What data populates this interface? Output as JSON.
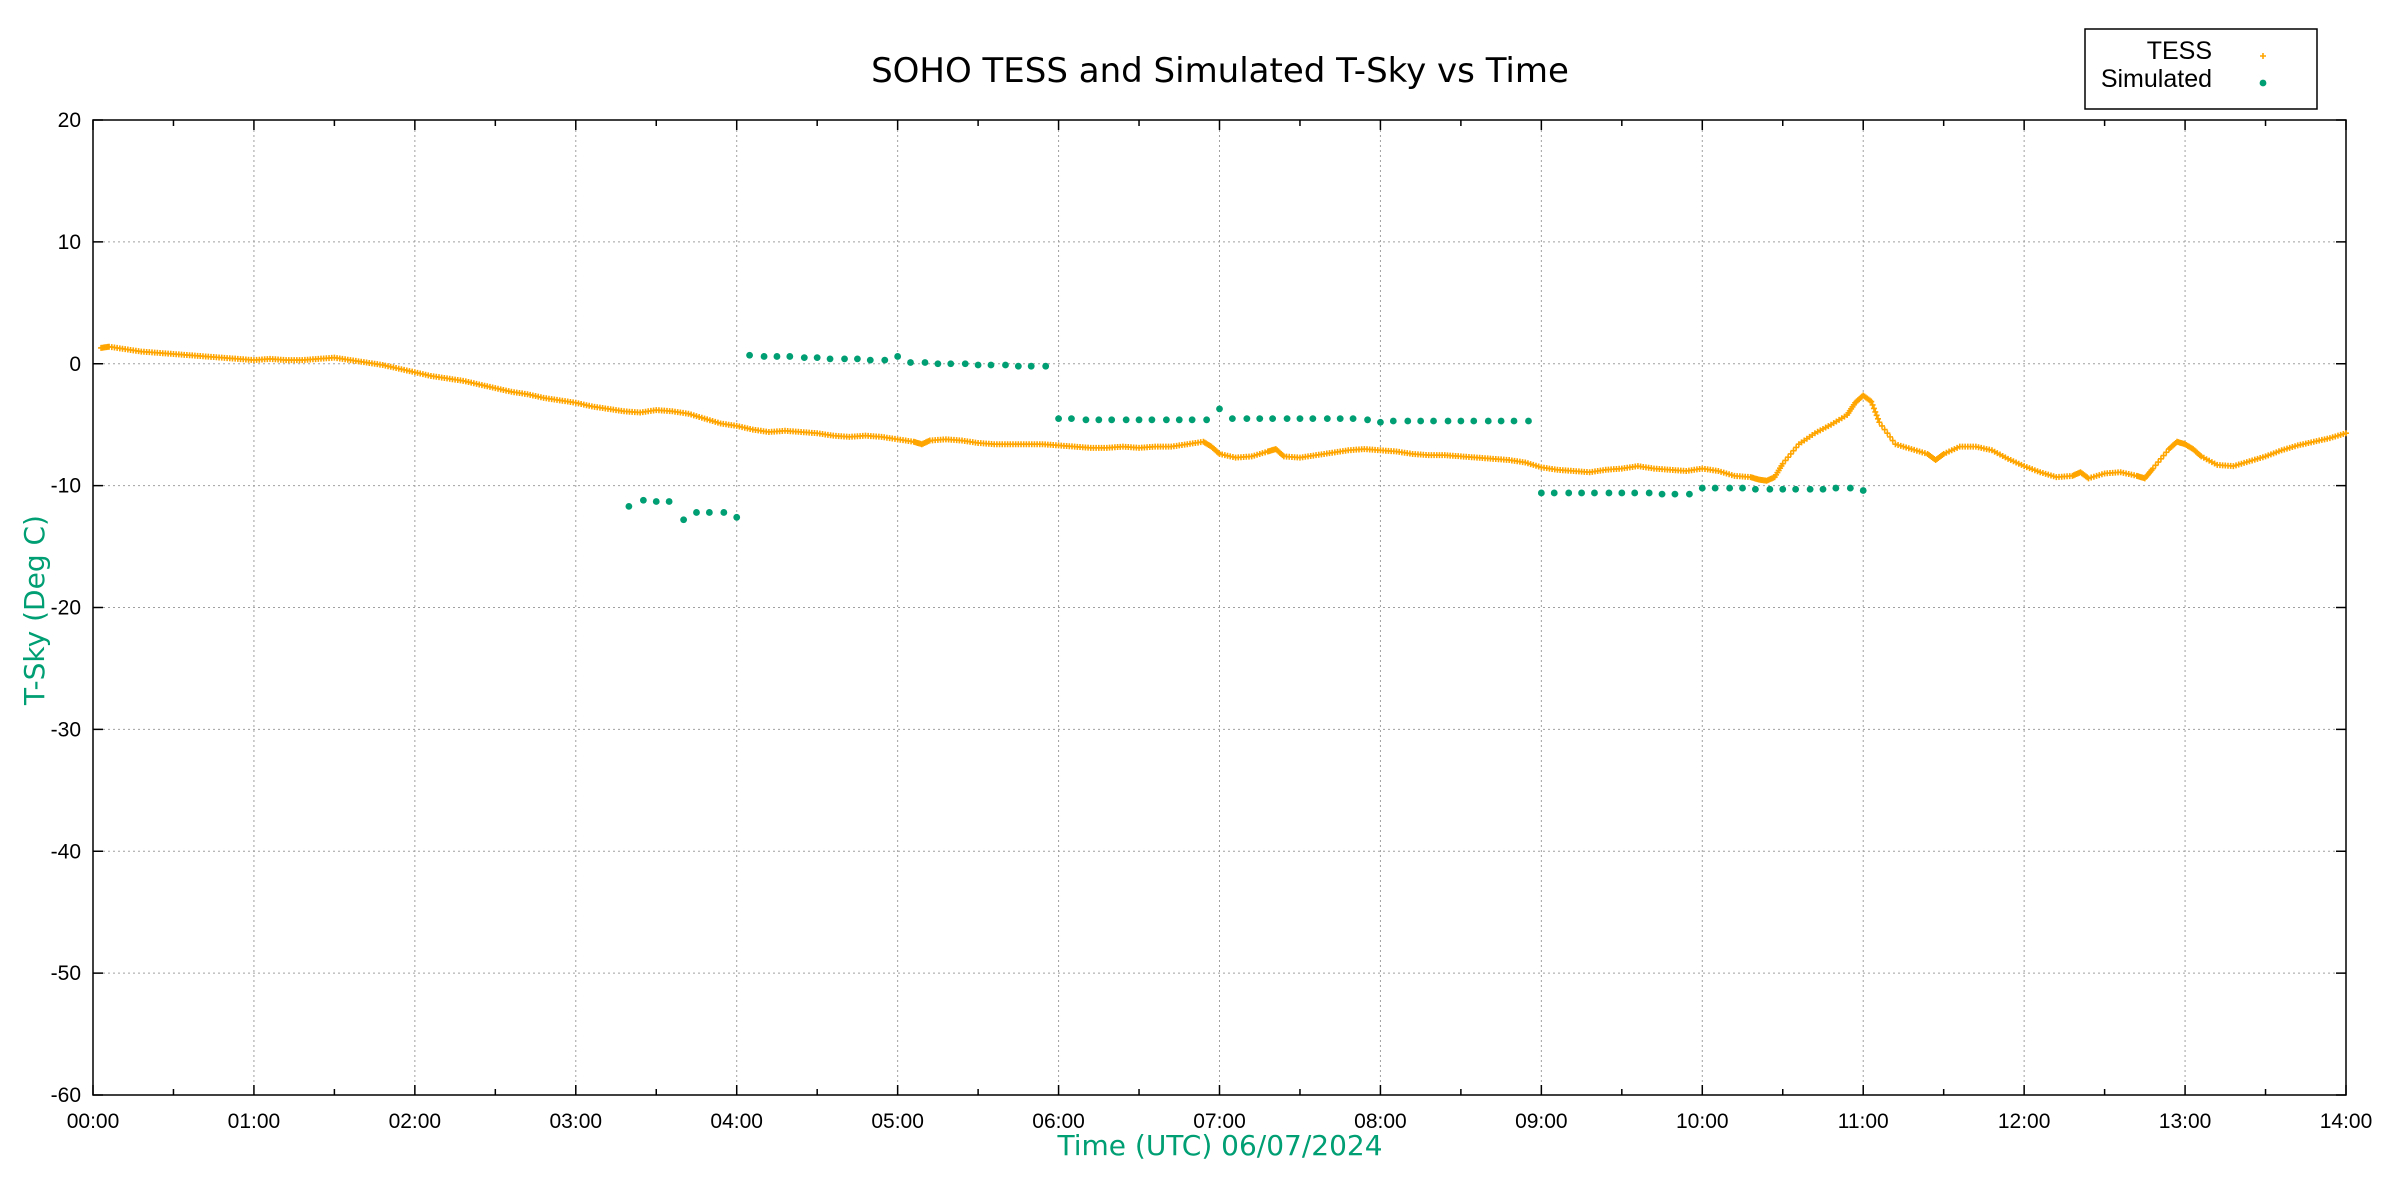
{
  "chart_data": {
    "type": "scatter",
    "title": "SOHO TESS and Simulated T-Sky vs Time",
    "xlabel": "Time (UTC)    06/07/2024",
    "ylabel": "T-Sky (Deg C)",
    "x_unit": "hours UTC",
    "xlim": [
      0,
      14
    ],
    "ylim": [
      -60,
      20
    ],
    "x_tick_values": [
      0,
      1,
      2,
      3,
      4,
      5,
      6,
      7,
      8,
      9,
      10,
      11,
      12,
      13,
      14
    ],
    "x_tick_labels": [
      "00:00",
      "01:00",
      "02:00",
      "03:00",
      "04:00",
      "05:00",
      "06:00",
      "07:00",
      "08:00",
      "09:00",
      "10:00",
      "11:00",
      "12:00",
      "13:00",
      "14:00"
    ],
    "y_tick_values": [
      20,
      10,
      0,
      -10,
      -20,
      -30,
      -40,
      -50,
      -60
    ],
    "y_tick_labels": [
      "20",
      "10",
      "0",
      "-10",
      "-20",
      "-30",
      "-40",
      "-50",
      "-60"
    ],
    "grid": true,
    "legend_position": "top-right",
    "colors": {
      "tess": "#ffa500",
      "simulated": "#009e73",
      "axis_label": "#009e73"
    },
    "series": [
      {
        "name": "TESS",
        "marker": "small-plus",
        "points": [
          [
            0.05,
            1.3
          ],
          [
            0.1,
            1.4
          ],
          [
            0.2,
            1.2
          ],
          [
            0.3,
            1.0
          ],
          [
            0.4,
            0.9
          ],
          [
            0.5,
            0.8
          ],
          [
            0.6,
            0.7
          ],
          [
            0.7,
            0.6
          ],
          [
            0.8,
            0.5
          ],
          [
            0.9,
            0.4
          ],
          [
            1.0,
            0.3
          ],
          [
            1.1,
            0.4
          ],
          [
            1.2,
            0.3
          ],
          [
            1.3,
            0.3
          ],
          [
            1.4,
            0.4
          ],
          [
            1.5,
            0.5
          ],
          [
            1.6,
            0.3
          ],
          [
            1.7,
            0.1
          ],
          [
            1.8,
            -0.1
          ],
          [
            1.9,
            -0.4
          ],
          [
            2.0,
            -0.7
          ],
          [
            2.1,
            -1.0
          ],
          [
            2.2,
            -1.2
          ],
          [
            2.3,
            -1.4
          ],
          [
            2.4,
            -1.7
          ],
          [
            2.5,
            -2.0
          ],
          [
            2.6,
            -2.3
          ],
          [
            2.7,
            -2.5
          ],
          [
            2.8,
            -2.8
          ],
          [
            2.9,
            -3.0
          ],
          [
            3.0,
            -3.2
          ],
          [
            3.1,
            -3.5
          ],
          [
            3.2,
            -3.7
          ],
          [
            3.3,
            -3.9
          ],
          [
            3.4,
            -4.0
          ],
          [
            3.5,
            -3.8
          ],
          [
            3.6,
            -3.9
          ],
          [
            3.7,
            -4.1
          ],
          [
            3.8,
            -4.5
          ],
          [
            3.9,
            -4.9
          ],
          [
            4.0,
            -5.1
          ],
          [
            4.1,
            -5.4
          ],
          [
            4.2,
            -5.6
          ],
          [
            4.3,
            -5.5
          ],
          [
            4.4,
            -5.6
          ],
          [
            4.5,
            -5.7
          ],
          [
            4.6,
            -5.9
          ],
          [
            4.7,
            -6.0
          ],
          [
            4.8,
            -5.9
          ],
          [
            4.9,
            -6.0
          ],
          [
            5.0,
            -6.2
          ],
          [
            5.1,
            -6.4
          ],
          [
            5.15,
            -6.6
          ],
          [
            5.2,
            -6.3
          ],
          [
            5.3,
            -6.2
          ],
          [
            5.4,
            -6.3
          ],
          [
            5.5,
            -6.5
          ],
          [
            5.6,
            -6.6
          ],
          [
            5.7,
            -6.6
          ],
          [
            5.8,
            -6.6
          ],
          [
            5.9,
            -6.6
          ],
          [
            6.0,
            -6.7
          ],
          [
            6.1,
            -6.8
          ],
          [
            6.2,
            -6.9
          ],
          [
            6.3,
            -6.9
          ],
          [
            6.4,
            -6.8
          ],
          [
            6.5,
            -6.9
          ],
          [
            6.6,
            -6.8
          ],
          [
            6.7,
            -6.8
          ],
          [
            6.8,
            -6.6
          ],
          [
            6.9,
            -6.4
          ],
          [
            6.95,
            -6.8
          ],
          [
            7.0,
            -7.4
          ],
          [
            7.1,
            -7.7
          ],
          [
            7.2,
            -7.6
          ],
          [
            7.3,
            -7.2
          ],
          [
            7.35,
            -7.0
          ],
          [
            7.4,
            -7.6
          ],
          [
            7.5,
            -7.7
          ],
          [
            7.6,
            -7.5
          ],
          [
            7.7,
            -7.3
          ],
          [
            7.8,
            -7.1
          ],
          [
            7.9,
            -7.0
          ],
          [
            8.0,
            -7.1
          ],
          [
            8.1,
            -7.2
          ],
          [
            8.2,
            -7.4
          ],
          [
            8.3,
            -7.5
          ],
          [
            8.4,
            -7.5
          ],
          [
            8.5,
            -7.6
          ],
          [
            8.6,
            -7.7
          ],
          [
            8.7,
            -7.8
          ],
          [
            8.8,
            -7.9
          ],
          [
            8.9,
            -8.1
          ],
          [
            9.0,
            -8.5
          ],
          [
            9.1,
            -8.7
          ],
          [
            9.2,
            -8.8
          ],
          [
            9.3,
            -8.9
          ],
          [
            9.4,
            -8.7
          ],
          [
            9.5,
            -8.6
          ],
          [
            9.6,
            -8.4
          ],
          [
            9.7,
            -8.6
          ],
          [
            9.8,
            -8.7
          ],
          [
            9.9,
            -8.8
          ],
          [
            10.0,
            -8.6
          ],
          [
            10.1,
            -8.8
          ],
          [
            10.2,
            -9.2
          ],
          [
            10.3,
            -9.3
          ],
          [
            10.35,
            -9.5
          ],
          [
            10.4,
            -9.6
          ],
          [
            10.45,
            -9.3
          ],
          [
            10.5,
            -8.2
          ],
          [
            10.6,
            -6.6
          ],
          [
            10.7,
            -5.7
          ],
          [
            10.8,
            -5.0
          ],
          [
            10.9,
            -4.2
          ],
          [
            10.95,
            -3.2
          ],
          [
            11.0,
            -2.6
          ],
          [
            11.05,
            -3.1
          ],
          [
            11.1,
            -4.8
          ],
          [
            11.2,
            -6.6
          ],
          [
            11.3,
            -7.0
          ],
          [
            11.4,
            -7.4
          ],
          [
            11.45,
            -7.9
          ],
          [
            11.5,
            -7.4
          ],
          [
            11.6,
            -6.8
          ],
          [
            11.7,
            -6.8
          ],
          [
            11.8,
            -7.1
          ],
          [
            11.9,
            -7.8
          ],
          [
            12.0,
            -8.4
          ],
          [
            12.1,
            -8.9
          ],
          [
            12.2,
            -9.3
          ],
          [
            12.3,
            -9.2
          ],
          [
            12.35,
            -8.9
          ],
          [
            12.4,
            -9.4
          ],
          [
            12.5,
            -9.0
          ],
          [
            12.6,
            -8.9
          ],
          [
            12.7,
            -9.2
          ],
          [
            12.75,
            -9.4
          ],
          [
            12.8,
            -8.6
          ],
          [
            12.9,
            -7.0
          ],
          [
            12.95,
            -6.4
          ],
          [
            13.0,
            -6.6
          ],
          [
            13.05,
            -7.0
          ],
          [
            13.1,
            -7.6
          ],
          [
            13.2,
            -8.3
          ],
          [
            13.3,
            -8.4
          ],
          [
            13.4,
            -8.0
          ],
          [
            13.5,
            -7.6
          ],
          [
            13.6,
            -7.1
          ],
          [
            13.7,
            -6.7
          ],
          [
            13.8,
            -6.4
          ],
          [
            13.9,
            -6.1
          ],
          [
            14.0,
            -5.7
          ]
        ]
      },
      {
        "name": "Simulated",
        "marker": "dot",
        "points": [
          [
            3.33,
            -11.7
          ],
          [
            3.42,
            -11.2
          ],
          [
            3.5,
            -11.3
          ],
          [
            3.58,
            -11.3
          ],
          [
            3.67,
            -12.8
          ],
          [
            3.75,
            -12.2
          ],
          [
            3.83,
            -12.2
          ],
          [
            3.92,
            -12.2
          ],
          [
            4.0,
            -12.6
          ],
          [
            4.08,
            0.7
          ],
          [
            4.17,
            0.6
          ],
          [
            4.25,
            0.6
          ],
          [
            4.33,
            0.6
          ],
          [
            4.42,
            0.5
          ],
          [
            4.5,
            0.5
          ],
          [
            4.58,
            0.4
          ],
          [
            4.67,
            0.4
          ],
          [
            4.75,
            0.4
          ],
          [
            4.83,
            0.3
          ],
          [
            4.92,
            0.3
          ],
          [
            5.0,
            0.6
          ],
          [
            5.08,
            0.1
          ],
          [
            5.17,
            0.1
          ],
          [
            5.25,
            0.0
          ],
          [
            5.33,
            0.0
          ],
          [
            5.42,
            0.0
          ],
          [
            5.5,
            -0.1
          ],
          [
            5.58,
            -0.1
          ],
          [
            5.67,
            -0.1
          ],
          [
            5.75,
            -0.2
          ],
          [
            5.83,
            -0.2
          ],
          [
            5.92,
            -0.2
          ],
          [
            6.0,
            -4.5
          ],
          [
            6.08,
            -4.5
          ],
          [
            6.17,
            -4.6
          ],
          [
            6.25,
            -4.6
          ],
          [
            6.33,
            -4.6
          ],
          [
            6.42,
            -4.6
          ],
          [
            6.5,
            -4.6
          ],
          [
            6.58,
            -4.6
          ],
          [
            6.67,
            -4.6
          ],
          [
            6.75,
            -4.6
          ],
          [
            6.83,
            -4.6
          ],
          [
            6.92,
            -4.6
          ],
          [
            7.0,
            -3.7
          ],
          [
            7.08,
            -4.5
          ],
          [
            7.17,
            -4.5
          ],
          [
            7.25,
            -4.5
          ],
          [
            7.33,
            -4.5
          ],
          [
            7.42,
            -4.5
          ],
          [
            7.5,
            -4.5
          ],
          [
            7.58,
            -4.5
          ],
          [
            7.67,
            -4.5
          ],
          [
            7.75,
            -4.5
          ],
          [
            7.83,
            -4.5
          ],
          [
            7.92,
            -4.6
          ],
          [
            8.0,
            -4.8
          ],
          [
            8.08,
            -4.7
          ],
          [
            8.17,
            -4.7
          ],
          [
            8.25,
            -4.7
          ],
          [
            8.33,
            -4.7
          ],
          [
            8.42,
            -4.7
          ],
          [
            8.5,
            -4.7
          ],
          [
            8.58,
            -4.7
          ],
          [
            8.67,
            -4.7
          ],
          [
            8.75,
            -4.7
          ],
          [
            8.83,
            -4.7
          ],
          [
            8.92,
            -4.7
          ],
          [
            9.0,
            -10.6
          ],
          [
            9.08,
            -10.6
          ],
          [
            9.17,
            -10.6
          ],
          [
            9.25,
            -10.6
          ],
          [
            9.33,
            -10.6
          ],
          [
            9.42,
            -10.6
          ],
          [
            9.5,
            -10.6
          ],
          [
            9.58,
            -10.6
          ],
          [
            9.67,
            -10.6
          ],
          [
            9.75,
            -10.7
          ],
          [
            9.83,
            -10.7
          ],
          [
            9.92,
            -10.7
          ],
          [
            10.0,
            -10.2
          ],
          [
            10.08,
            -10.2
          ],
          [
            10.17,
            -10.2
          ],
          [
            10.25,
            -10.2
          ],
          [
            10.33,
            -10.3
          ],
          [
            10.42,
            -10.3
          ],
          [
            10.5,
            -10.3
          ],
          [
            10.58,
            -10.3
          ],
          [
            10.67,
            -10.3
          ],
          [
            10.75,
            -10.3
          ],
          [
            10.83,
            -10.2
          ],
          [
            10.92,
            -10.2
          ],
          [
            11.0,
            -10.4
          ]
        ]
      }
    ]
  }
}
